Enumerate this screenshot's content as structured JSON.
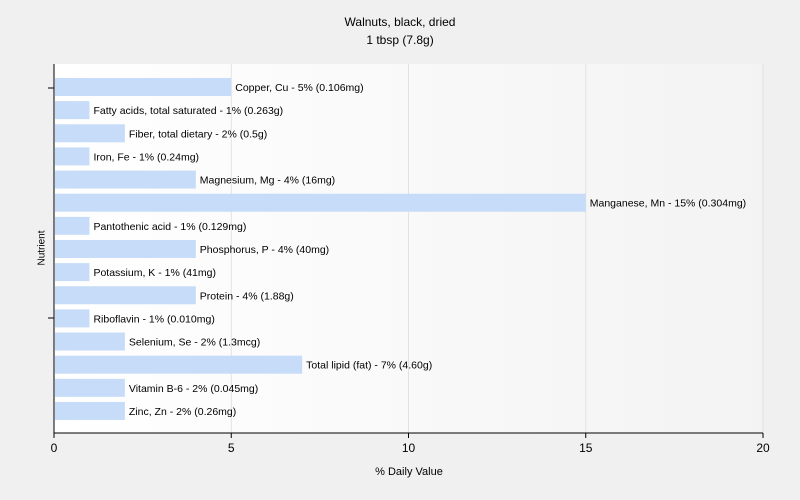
{
  "chart_data": {
    "type": "bar",
    "orientation": "horizontal",
    "title": "Walnuts, black, dried",
    "subtitle": "1 tbsp (7.8g)",
    "xlabel": "% Daily Value",
    "ylabel": "Nutrient",
    "xlim": [
      0,
      20
    ],
    "xticks": [
      0,
      5,
      10,
      15,
      20
    ],
    "grid": true,
    "bar_color": "#c6dcf8",
    "categories": [
      "Copper, Cu",
      "Fatty acids, total saturated",
      "Fiber, total dietary",
      "Iron, Fe",
      "Magnesium, Mg",
      "Manganese, Mn",
      "Pantothenic acid",
      "Phosphorus, P",
      "Potassium, K",
      "Protein",
      "Riboflavin",
      "Selenium, Se",
      "Total lipid (fat)",
      "Vitamin B-6",
      "Zinc, Zn"
    ],
    "values": [
      5,
      1,
      2,
      1,
      4,
      15,
      1,
      4,
      1,
      4,
      1,
      2,
      7,
      2,
      2
    ],
    "labels": [
      "Copper, Cu - 5% (0.106mg)",
      "Fatty acids, total saturated - 1% (0.263g)",
      "Fiber, total dietary - 2% (0.5g)",
      "Iron, Fe - 1% (0.24mg)",
      "Magnesium, Mg - 4% (16mg)",
      "Manganese, Mn - 15% (0.304mg)",
      "Pantothenic acid - 1% (0.129mg)",
      "Phosphorus, P - 4% (40mg)",
      "Potassium, K - 1% (41mg)",
      "Protein - 4% (1.88g)",
      "Riboflavin - 1% (0.010mg)",
      "Selenium, Se - 2% (1.3mcg)",
      "Total lipid (fat) - 7% (4.60g)",
      "Vitamin B-6 - 2% (0.045mg)",
      "Zinc, Zn - 2% (0.26mg)"
    ]
  }
}
